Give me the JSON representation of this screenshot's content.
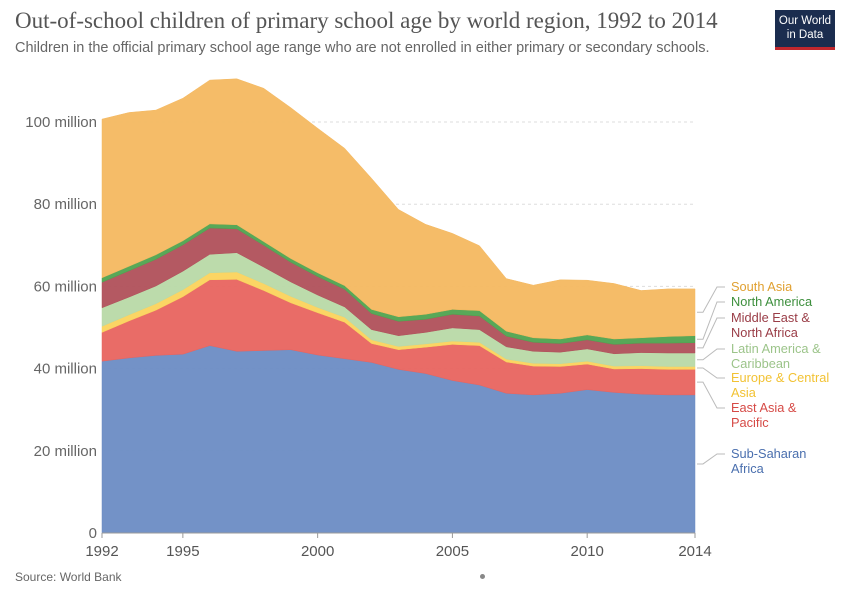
{
  "title": "Out-of-school children of primary school age by world region, 1992 to 2014",
  "subtitle": "Children in the official primary school age range who are not enrolled in either primary or secondary schools.",
  "logo": {
    "line1": "Our World",
    "line2": "in Data",
    "colors": {
      "bg": "#1b2d4f",
      "accent": "#c1272d"
    }
  },
  "source": "Source: World Bank",
  "chart_data": {
    "type": "area",
    "stacked": true,
    "x": [
      1992,
      1993,
      1994,
      1995,
      1996,
      1997,
      1998,
      1999,
      2000,
      2001,
      2002,
      2003,
      2004,
      2005,
      2006,
      2007,
      2008,
      2009,
      2010,
      2011,
      2012,
      2013,
      2014
    ],
    "xlim": [
      1992,
      2014
    ],
    "ylim": [
      0,
      110000000
    ],
    "xticks": [
      "1992",
      "1995",
      "2000",
      "2005",
      "2010",
      "2014"
    ],
    "xtick_values": [
      1992,
      1995,
      2000,
      2005,
      2010,
      2014
    ],
    "yticks": [
      "0",
      "20 million",
      "40 million",
      "60 million",
      "80 million",
      "100 million"
    ],
    "ytick_values": [
      0,
      20000000,
      40000000,
      60000000,
      80000000,
      100000000
    ],
    "grid": "horizontal dashed",
    "legend_position": "right, labels at series ends",
    "series": [
      {
        "name": "Sub-Saharan Africa",
        "color": "#6b8cc4",
        "values": [
          41800000,
          42600000,
          43200000,
          43500000,
          45600000,
          44200000,
          44400000,
          44600000,
          43300000,
          42400000,
          41500000,
          39800000,
          38800000,
          37100000,
          36000000,
          34000000,
          33600000,
          34000000,
          34900000,
          34200000,
          33800000,
          33600000,
          33600000
        ]
      },
      {
        "name": "East Asia & Pacific",
        "color": "#e8645f",
        "values": [
          7000000,
          9000000,
          11000000,
          14000000,
          16000000,
          17500000,
          14600000,
          11400000,
          10300000,
          8900000,
          4600000,
          4800000,
          6400000,
          8800000,
          9600000,
          7600000,
          7000000,
          6500000,
          6200000,
          5700000,
          6200000,
          6200000,
          6200000
        ]
      },
      {
        "name": "Europe & Central Asia",
        "color": "#fbd35c",
        "values": [
          1500000,
          1500000,
          1600000,
          1700000,
          1700000,
          1800000,
          1700000,
          1600000,
          1300000,
          1200000,
          900000,
          800000,
          800000,
          800000,
          800000,
          700000,
          700000,
          700000,
          700000,
          700000,
          700000,
          700000,
          700000
        ]
      },
      {
        "name": "Latin America & Caribbean",
        "color": "#b8d9a7",
        "values": [
          4500000,
          4300000,
          4300000,
          4500000,
          4500000,
          4700000,
          4000000,
          3500000,
          3000000,
          2500000,
          2500000,
          2600000,
          2800000,
          3200000,
          3100000,
          3000000,
          2900000,
          2800000,
          3000000,
          3000000,
          3200000,
          3300000,
          3300000
        ]
      },
      {
        "name": "Middle East & North Africa",
        "color": "#b0505a",
        "values": [
          6200000,
          6400000,
          6500000,
          6400000,
          6400000,
          5800000,
          5300000,
          4800000,
          4500000,
          4300000,
          3900000,
          3500000,
          3200000,
          3300000,
          3300000,
          2600000,
          2200000,
          2100000,
          2200000,
          2300000,
          2300000,
          2400000,
          2500000
        ]
      },
      {
        "name": "North America",
        "color": "#4fa34f",
        "values": [
          1100000,
          1100000,
          1100000,
          1000000,
          1000000,
          1000000,
          900000,
          900000,
          900000,
          900000,
          1000000,
          1100000,
          1200000,
          1200000,
          1300000,
          1200000,
          1100000,
          1100000,
          1200000,
          1300000,
          1300000,
          1600000,
          1700000
        ]
      },
      {
        "name": "South Asia",
        "color": "#f4b860",
        "values": [
          38600000,
          37400000,
          35200000,
          34700000,
          35000000,
          35500000,
          37300000,
          36700000,
          35200000,
          33400000,
          31900000,
          26100000,
          21900000,
          18500000,
          15800000,
          12800000,
          12800000,
          14400000,
          13300000,
          13500000,
          11500000,
          11600000,
          11400000
        ]
      }
    ],
    "legend_labels": [
      {
        "series": "South Asia",
        "lines": [
          "South Asia"
        ],
        "color": "#e0a030"
      },
      {
        "series": "North America",
        "lines": [
          "North America"
        ],
        "color": "#3d8f3d"
      },
      {
        "series": "Middle East & North Africa",
        "lines": [
          "Middle East &",
          "North Africa"
        ],
        "color": "#9a3d47"
      },
      {
        "series": "Latin America & Caribbean",
        "lines": [
          "Latin America &",
          "Caribbean"
        ],
        "color": "#9cc48a"
      },
      {
        "series": "Europe & Central Asia",
        "lines": [
          "Europe & Central",
          "Asia"
        ],
        "color": "#f2c233"
      },
      {
        "series": "East Asia & Pacific",
        "lines": [
          "East Asia &",
          "Pacific"
        ],
        "color": "#d64a46"
      },
      {
        "series": "Sub-Saharan Africa",
        "lines": [
          "Sub-Saharan",
          "Africa"
        ],
        "color": "#4a6fae"
      }
    ]
  }
}
